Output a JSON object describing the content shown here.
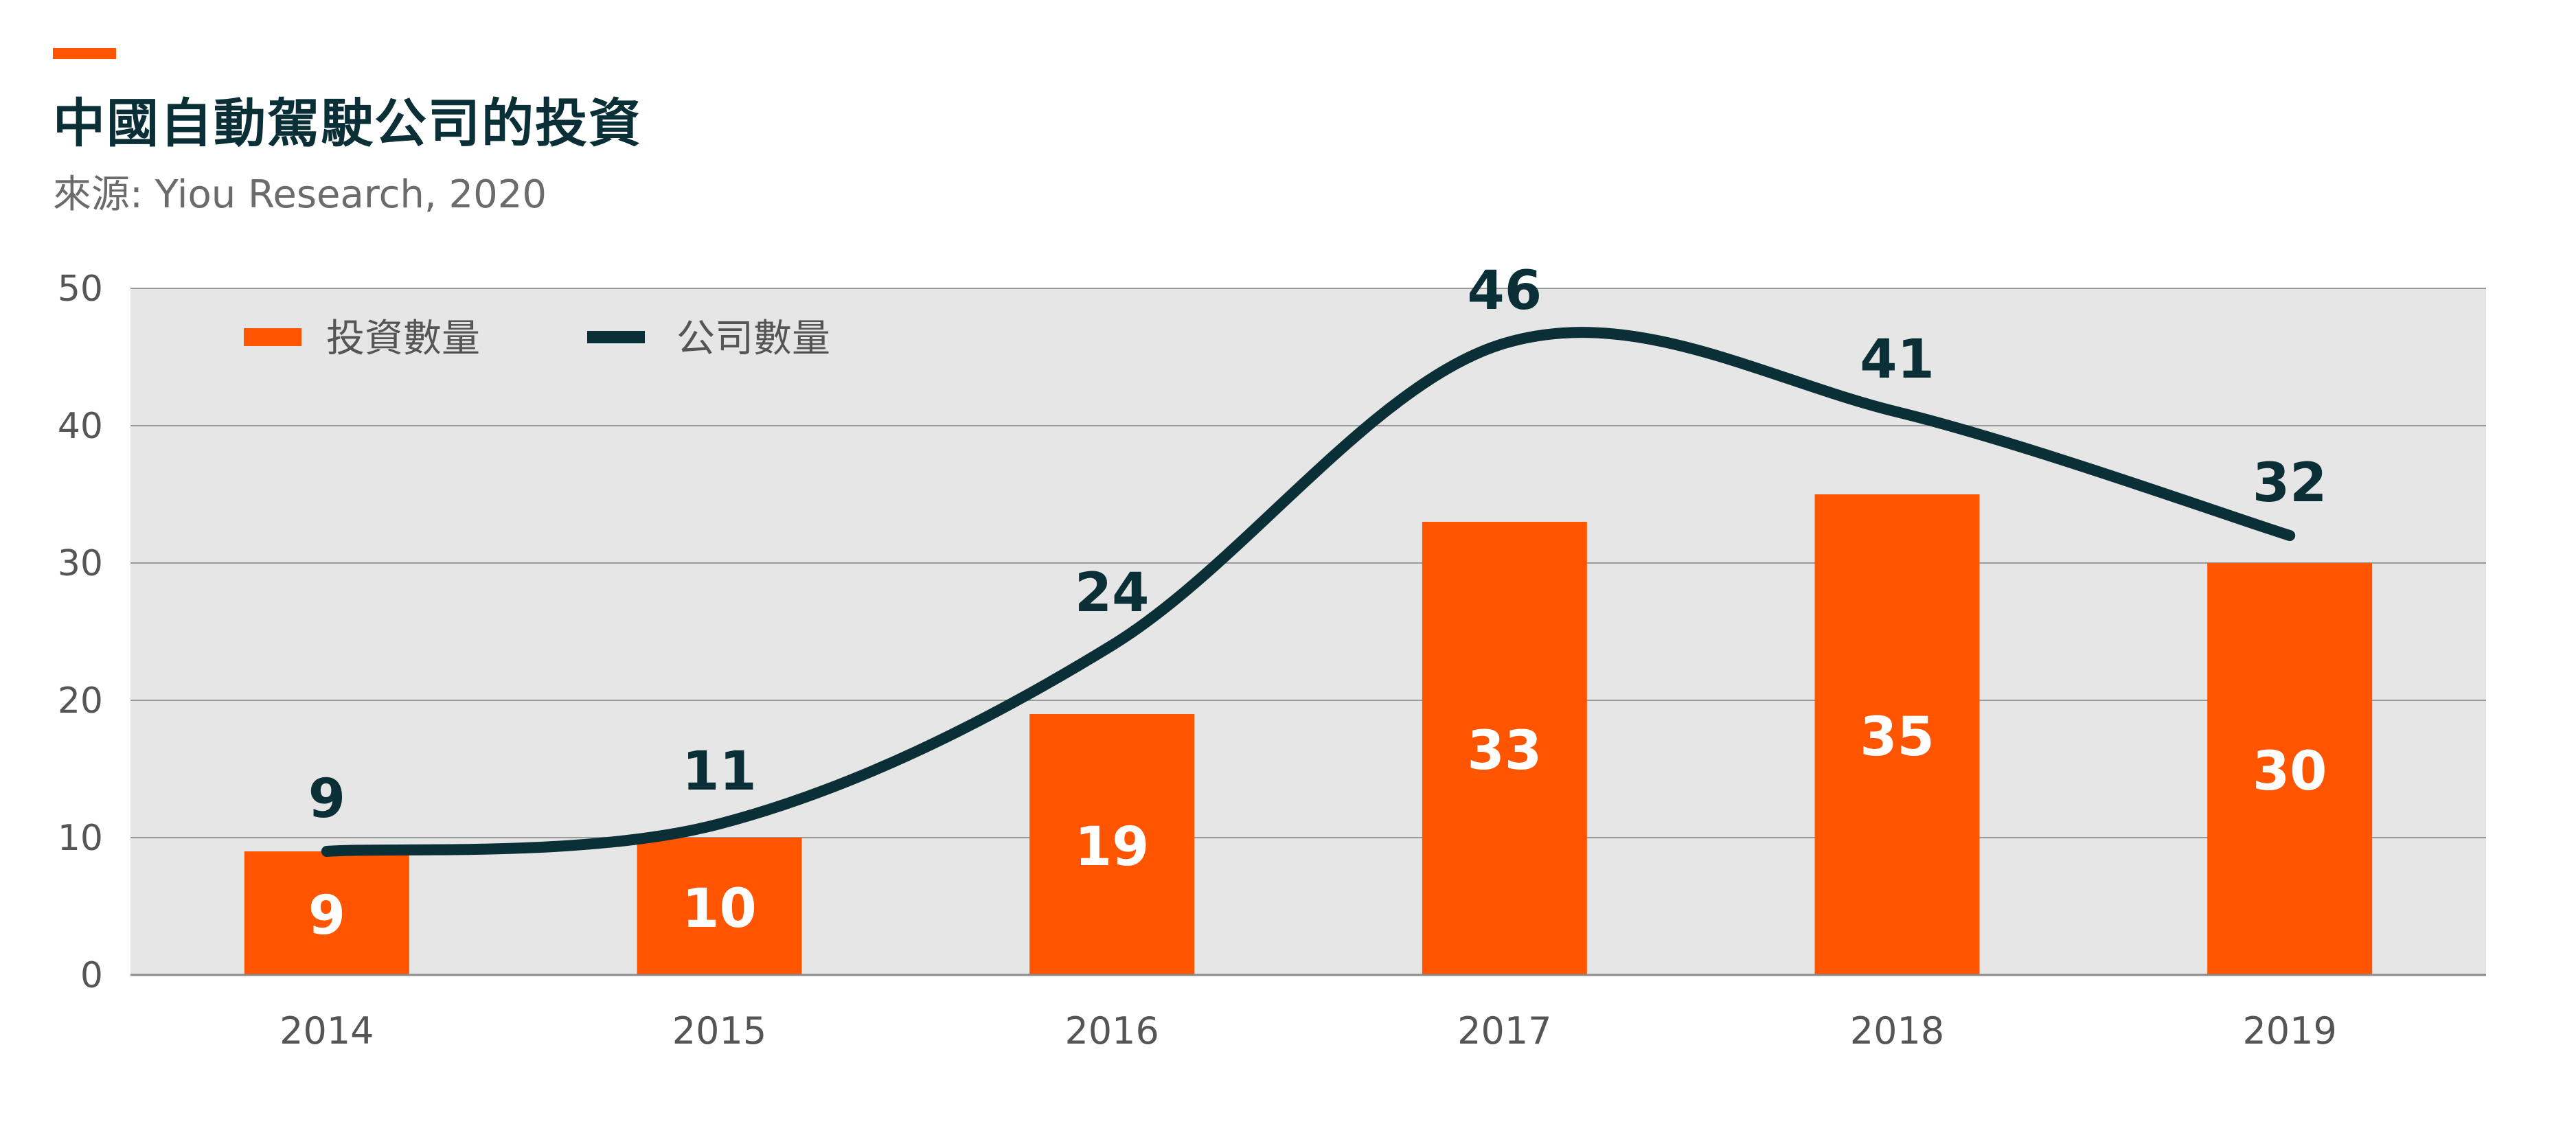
{
  "header": {
    "title": "中國自動駕駛公司的投資",
    "source": "來源: Yiou Research, 2020"
  },
  "colors": {
    "bar": "#ff5500",
    "line": "#0b2f36",
    "plot_bg": "#e6e6e6",
    "accent": "#ff5500"
  },
  "chart_data": {
    "type": "bar",
    "categories": [
      "2014",
      "2015",
      "2016",
      "2017",
      "2018",
      "2019"
    ],
    "series": [
      {
        "name": "投資數量",
        "type": "bar",
        "values": [
          9,
          10,
          19,
          33,
          35,
          30
        ]
      },
      {
        "name": "公司數量",
        "type": "line",
        "values": [
          9,
          11,
          24,
          46,
          41,
          32
        ]
      }
    ],
    "ylim": [
      0,
      50
    ],
    "yticks": [
      0,
      10,
      20,
      30,
      40,
      50
    ],
    "grid": true,
    "legend": "top-left"
  }
}
